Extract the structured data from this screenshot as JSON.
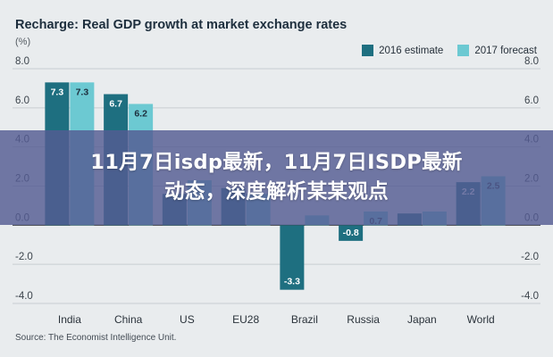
{
  "chart_data": {
    "type": "bar",
    "title": "Recharge: Real GDP growth at market exchange rates",
    "unit": "(%)",
    "categories": [
      "India",
      "China",
      "US",
      "EU28",
      "Brazil",
      "Russia",
      "Japan",
      "World"
    ],
    "series": [
      {
        "name": "2016 estimate",
        "color": "#1e6f80",
        "values": [
          7.3,
          6.7,
          1.6,
          1.9,
          -3.3,
          -0.8,
          0.6,
          2.2
        ]
      },
      {
        "name": "2017 forecast",
        "color": "#6cc9d2",
        "values": [
          7.3,
          6.2,
          2.3,
          1.6,
          0.5,
          0.7,
          0.7,
          2.5
        ]
      }
    ],
    "data_labels_shown": {
      "2016 estimate": [
        "7.3",
        "6.7",
        "",
        "",
        "-3.3",
        "-0.8",
        "",
        "2.2"
      ],
      "2017 forecast": [
        "7.3",
        "6.2",
        "",
        "",
        "",
        "0.7",
        "",
        "2.5"
      ]
    },
    "ylim": [
      -4.0,
      8.0
    ],
    "yticks": [
      "8.0",
      "6.0",
      "4.0",
      "2.0",
      "0.0",
      "-2.0",
      "-4.0"
    ],
    "grid": true,
    "legend_position": "top-right",
    "source": "Source: The Economist Intelligence Unit."
  },
  "banner": {
    "line1": "11月7日isdp最新，11月7日ISDP最新",
    "line2": "动态，深度解析某某观点"
  }
}
